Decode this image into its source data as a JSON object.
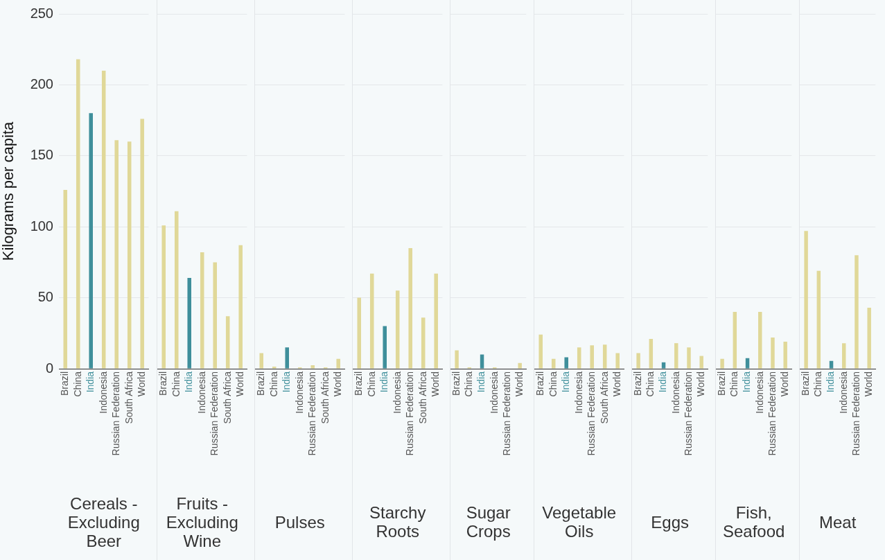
{
  "chart_data": [
    {
      "type": "bar",
      "xlabel": "Cereals - Excluding Beer",
      "ylabel": "Kilograms per capita",
      "categories": [
        "Brazil",
        "China",
        "India",
        "Indonesia",
        "Russian Federation",
        "South Africa",
        "World"
      ],
      "values": [
        126,
        218,
        180,
        210,
        161,
        160,
        176
      ],
      "colors": [
        "#e0d898",
        "#e0d898",
        "#3f8f9b",
        "#e0d898",
        "#e0d898",
        "#e0d898",
        "#e0d898"
      ],
      "ylim": [
        0,
        250
      ],
      "yticks": [
        0,
        50,
        100,
        150,
        200,
        250
      ],
      "grid": "y"
    },
    {
      "type": "bar",
      "xlabel": "Fruits - Excluding Wine",
      "categories": [
        "Brazil",
        "China",
        "India",
        "Indonesia",
        "Russian Federation",
        "South Africa",
        "World"
      ],
      "values": [
        101,
        111,
        64,
        82,
        75,
        37,
        87
      ],
      "colors": [
        "#e0d898",
        "#e0d898",
        "#3f8f9b",
        "#e0d898",
        "#e0d898",
        "#e0d898",
        "#e0d898"
      ],
      "ylim": [
        0,
        250
      ],
      "yticks": [
        0,
        50,
        100,
        150,
        200,
        250
      ],
      "grid": "y",
      "tick_labels": "x"
    },
    {
      "type": "bar",
      "xlabel": "Pulses",
      "categories": [
        "Brazil",
        "China",
        "India",
        "Indonesia",
        "Russian Federation",
        "South Africa",
        "World"
      ],
      "values": [
        11,
        1.5,
        15,
        1,
        2.5,
        1,
        7
      ],
      "colors": [
        "#e0d898",
        "#e0d898",
        "#3f8f9b",
        "#e0d898",
        "#e0d898",
        "#e0d898",
        "#e0d898"
      ],
      "ylim": [
        0,
        250
      ],
      "yticks": [
        0,
        50,
        100,
        150,
        200,
        250
      ],
      "grid": "y",
      "tick_labels": "x"
    },
    {
      "type": "bar",
      "xlabel": "Starchy Roots",
      "categories": [
        "Brazil",
        "China",
        "India",
        "Indonesia",
        "Russian Federation",
        "South Africa",
        "World"
      ],
      "values": [
        50,
        67,
        30,
        55,
        85,
        36,
        67
      ],
      "colors": [
        "#e0d898",
        "#e0d898",
        "#3f8f9b",
        "#e0d898",
        "#e0d898",
        "#e0d898",
        "#e0d898"
      ],
      "ylim": [
        0,
        250
      ],
      "yticks": [
        0,
        50,
        100,
        150,
        200,
        250
      ],
      "grid": "y",
      "tick_labels": "x"
    },
    {
      "type": "bar",
      "xlabel": "Sugar Crops",
      "categories": [
        "Brazil",
        "China",
        "India",
        "Indonesia",
        "Russian Federation",
        "World"
      ],
      "values": [
        13,
        1,
        10,
        1,
        0,
        4
      ],
      "colors": [
        "#e0d898",
        "#e0d898",
        "#3f8f9b",
        "#e0d898",
        "#e0d898",
        "#e0d898"
      ],
      "ylim": [
        0,
        250
      ],
      "yticks": [
        0,
        50,
        100,
        150,
        200,
        250
      ],
      "grid": "y",
      "tick_labels": "x"
    },
    {
      "type": "bar",
      "xlabel": "Vegetable Oils",
      "categories": [
        "Brazil",
        "China",
        "India",
        "Indonesia",
        "Russian Federation",
        "South Africa",
        "World"
      ],
      "values": [
        24,
        7,
        8,
        15,
        16.5,
        17,
        11
      ],
      "colors": [
        "#e0d898",
        "#e0d898",
        "#3f8f9b",
        "#e0d898",
        "#e0d898",
        "#e0d898",
        "#e0d898"
      ],
      "ylim": [
        0,
        250
      ],
      "yticks": [
        0,
        50,
        100,
        150,
        200,
        250
      ],
      "grid": "y",
      "tick_labels": "x"
    },
    {
      "type": "bar",
      "xlabel": "Eggs",
      "categories": [
        "Brazil",
        "China",
        "India",
        "Indonesia",
        "Russian Federation",
        "World"
      ],
      "values": [
        11,
        21,
        4.5,
        18,
        15,
        9
      ],
      "colors": [
        "#e0d898",
        "#e0d898",
        "#3f8f9b",
        "#e0d898",
        "#e0d898",
        "#e0d898"
      ],
      "ylim": [
        0,
        250
      ],
      "yticks": [
        0,
        50,
        100,
        150,
        200,
        250
      ],
      "grid": "y",
      "tick_labels": "x"
    },
    {
      "type": "bar",
      "xlabel": "Fish, Seafood",
      "categories": [
        "Brazil",
        "China",
        "India",
        "Indonesia",
        "Russian Federation",
        "World"
      ],
      "values": [
        7,
        40,
        7.5,
        40,
        22,
        19
      ],
      "colors": [
        "#e0d898",
        "#e0d898",
        "#3f8f9b",
        "#e0d898",
        "#e0d898",
        "#e0d898"
      ],
      "ylim": [
        0,
        250
      ],
      "yticks": [
        0,
        50,
        100,
        150,
        200,
        250
      ],
      "grid": "y",
      "tick_labels": "x"
    },
    {
      "type": "bar",
      "xlabel": "Meat",
      "categories": [
        "Brazil",
        "China",
        "India",
        "Indonesia",
        "Russian Federation",
        "World"
      ],
      "values": [
        97,
        69,
        5.5,
        18,
        80,
        43
      ],
      "colors": [
        "#e0d898",
        "#e0d898",
        "#3f8f9b",
        "#e0d898",
        "#e0d898",
        "#e0d898"
      ],
      "ylim": [
        0,
        250
      ],
      "yticks": [
        0,
        50,
        100,
        150,
        200,
        250
      ],
      "grid": "y",
      "tick_labels": "x"
    }
  ]
}
